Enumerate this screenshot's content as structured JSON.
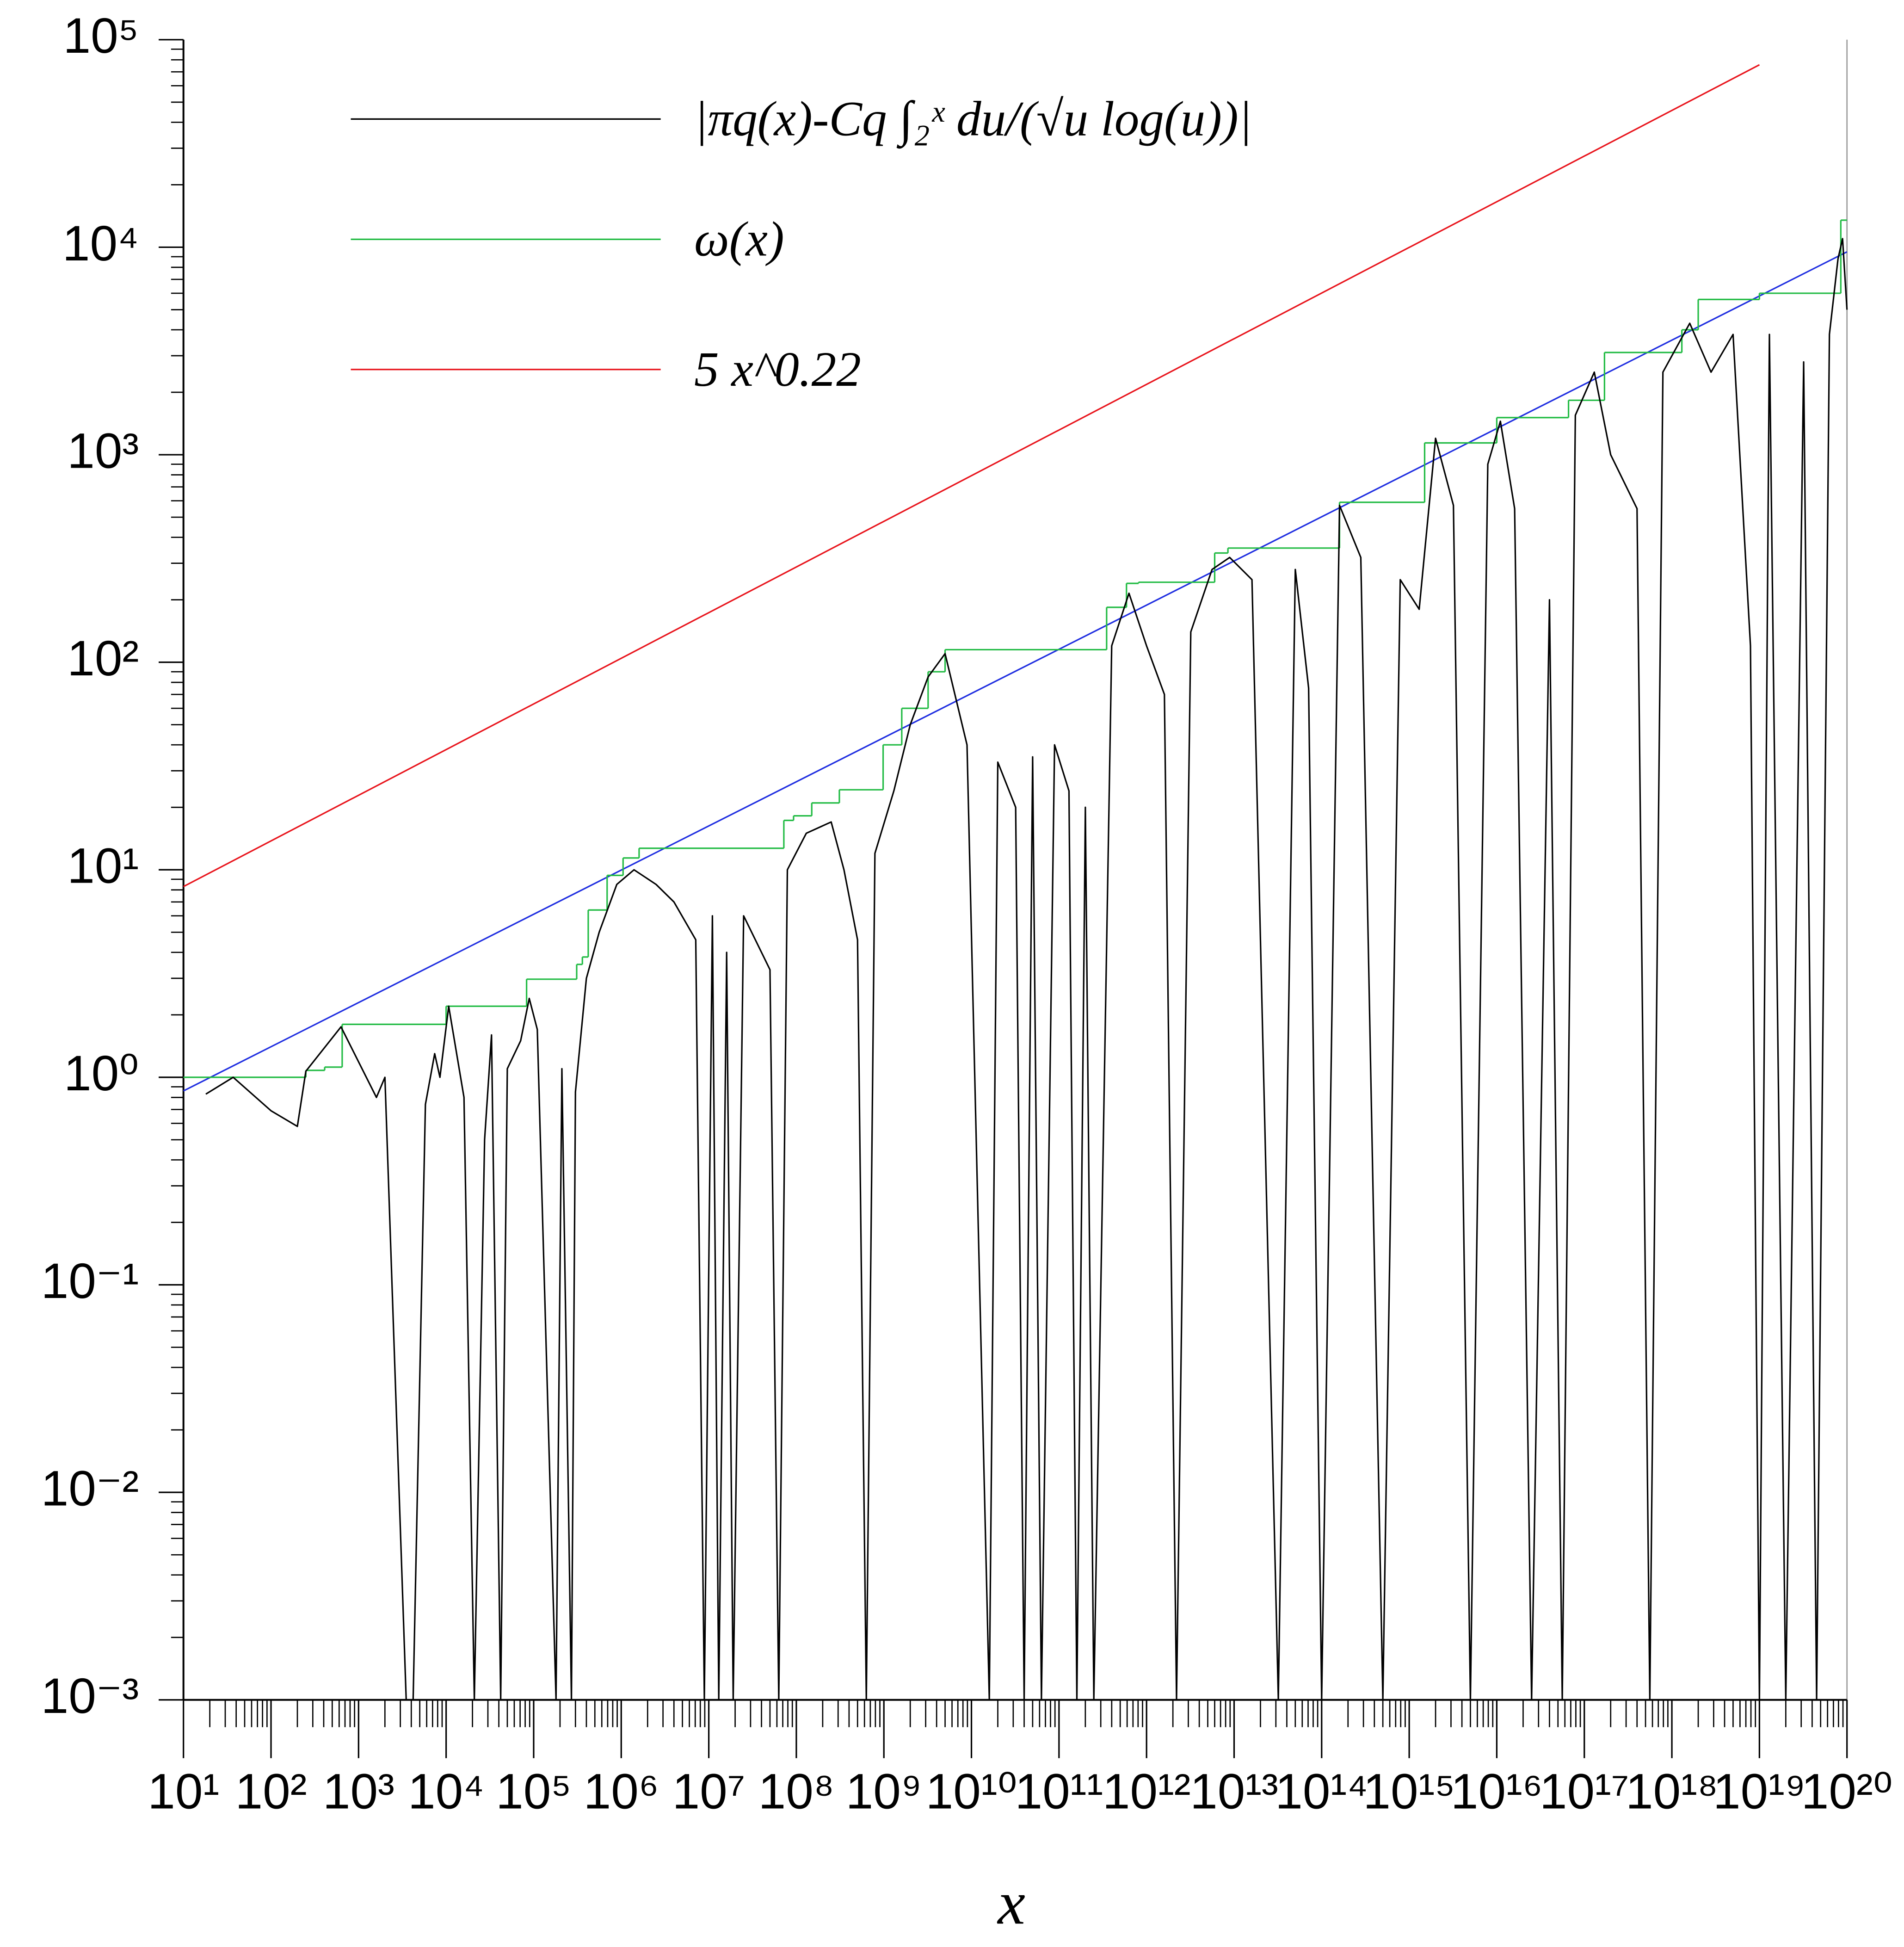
{
  "chart_data": {
    "type": "line",
    "x_label": "x",
    "xscale": "log",
    "yscale": "log",
    "xlim": [
      10,
      1e+20
    ],
    "ylim": [
      0.001,
      100000
    ],
    "xticks": [
      {
        "value": 10.0,
        "label": "10¹"
      },
      {
        "value": 100.0,
        "label": "10²"
      },
      {
        "value": 1000.0,
        "label": "10³"
      },
      {
        "value": 10000.0,
        "label": "10⁴"
      },
      {
        "value": 100000.0,
        "label": "10⁵"
      },
      {
        "value": 1000000.0,
        "label": "10⁶"
      },
      {
        "value": 10000000.0,
        "label": "10⁷"
      },
      {
        "value": 100000000.0,
        "label": "10⁸"
      },
      {
        "value": 1000000000.0,
        "label": "10⁹"
      },
      {
        "value": 10000000000.0,
        "label": "10¹⁰"
      },
      {
        "value": 100000000000.0,
        "label": "10¹¹"
      },
      {
        "value": 1000000000000.0,
        "label": "10¹²"
      },
      {
        "value": 10000000000000.0,
        "label": "10¹³"
      },
      {
        "value": 100000000000000.0,
        "label": "10¹⁴"
      },
      {
        "value": 1000000000000000.0,
        "label": "10¹⁵"
      },
      {
        "value": 1e+16,
        "label": "10¹⁶"
      },
      {
        "value": 1e+17,
        "label": "10¹⁷"
      },
      {
        "value": 1e+18,
        "label": "10¹⁸"
      },
      {
        "value": 1e+19,
        "label": "10¹⁹"
      },
      {
        "value": 1e+20,
        "label": "10²⁰"
      }
    ],
    "yticks": [
      {
        "value": 0.001,
        "label": "10⁻³"
      },
      {
        "value": 0.01,
        "label": "10⁻²"
      },
      {
        "value": 0.1,
        "label": "10⁻¹"
      },
      {
        "value": 1,
        "label": "10⁰"
      },
      {
        "value": 10,
        "label": "10¹"
      },
      {
        "value": 100,
        "label": "10²"
      },
      {
        "value": 1000,
        "label": "10³"
      },
      {
        "value": 10000,
        "label": "10⁴"
      },
      {
        "value": 100000,
        "label": "10⁵"
      }
    ],
    "minor_ticks": true,
    "grid": false,
    "legend": "upper left",
    "series": [
      {
        "name": "|πq(x)-Cq ∫₂ˣ du/(√u log(u))|",
        "color": "#000000",
        "x": [
          18.0,
          37.0,
          100.0,
          200.0,
          250.0,
          630.0,
          1600.0,
          2000.0,
          3500.0,
          4200.0,
          5800.0,
          7400.0,
          8500.0,
          10700.0,
          16000.0,
          21000.0,
          27500.0,
          33000.0,
          42000.0,
          50000.0,
          71000.0,
          89000.0,
          110000.0,
          180000.0,
          210000.0,
          270000.0,
          300000.0,
          400000.0,
          560000.0,
          890000.0,
          1400000.0,
          2500000.0,
          4000000.0,
          7100000.0,
          8900000.0,
          11000000.0,
          13000000.0,
          16000000.0,
          19000000.0,
          25000000.0,
          50000000.0,
          63000000.0,
          79000000.0,
          130000000.0,
          250000000.0,
          350000000.0,
          500000000.0,
          630000000.0,
          790000000.0,
          1300000000.0,
          2000000000.0,
          3200000000.0,
          5000000000.0,
          8900000000.0,
          16000000000.0,
          20000000000.0,
          32000000000.0,
          40000000000.0,
          50000000000.0,
          63000000000.0,
          89000000000.0,
          130000000000.0,
          160000000000.0,
          200000000000.0,
          250000000000.0,
          400000000000.0,
          630000000000.0,
          1000000000000.0,
          1600000000000.0,
          2200000000000.0,
          3200000000000.0,
          5600000000000.0,
          8900000000000.0,
          16000000000000.0,
          32000000000000.0,
          50000000000000.0,
          71000000000000.0,
          100000000000000.0,
          160000000000000.0,
          280000000000000.0,
          500000000000000.0,
          790000000000000.0,
          1300000000000000.0,
          2000000000000000.0,
          3200000000000000.0,
          5000000000000000.0,
          7900000000000000.0,
          1.1e+16,
          1.6e+16,
          2.5e+16,
          4e+16,
          5.6e+16,
          7.9e+16,
          1.3e+17,
          2e+17,
          4e+17,
          5.6e+17,
          7.9e+17,
          1.6e+18,
          2.8e+18,
          5e+18,
          7.9e+18,
          1e+19,
          1.3e+19,
          2e+19,
          3.2e+19,
          4.5e+19,
          6.3e+19,
          7.9e+19,
          8.9e+19,
          1e+20
        ],
        "values": [
          0.83,
          1.0,
          0.69,
          0.58,
          1.07,
          1.75,
          0.8,
          1.0,
          0.001,
          0.001,
          0.74,
          1.3,
          1.0,
          2.2,
          0.8,
          0.001,
          0.5,
          1.6,
          0.001,
          1.1,
          1.5,
          2.4,
          1.7,
          0.001,
          1.1,
          0.001,
          0.85,
          3,
          5,
          8.5,
          10,
          8.5,
          7,
          4.6,
          0.001,
          6,
          0.001,
          4,
          0.001,
          6,
          3.3,
          0.001,
          10,
          15,
          17,
          10,
          4.6,
          0.001,
          12,
          24,
          50,
          85,
          110,
          40,
          0.001,
          33,
          20,
          0.001,
          35,
          0.001,
          40,
          24,
          0.001,
          20,
          0.001,
          120,
          215,
          120,
          70,
          0.001,
          140,
          280,
          320,
          250,
          0.001,
          280,
          75,
          0.001,
          570,
          320,
          0.001,
          250,
          180,
          1200,
          570,
          0.001,
          900,
          1450,
          550,
          0.001,
          200,
          0.001,
          1550,
          2500,
          1000,
          550,
          0.001,
          2500,
          4300,
          2500,
          3800,
          120,
          0.001,
          3800,
          0.001,
          2800,
          0.001,
          3800,
          8800,
          11000,
          5000
        ]
      },
      {
        "name": "ω(x)",
        "color": "#22bb44",
        "step": "post",
        "x": [
          10,
          250,
          410,
          650,
          10000.0,
          83000.0,
          310000.0,
          360000.0,
          420000.0,
          690000.0,
          1050000.0,
          1600000.0,
          72000000.0,
          93000000.0,
          150000000.0,
          310000000.0,
          980000000.0,
          1600000000.0,
          3200000000.0,
          5000000000.0,
          350000000000.0,
          590000000000.0,
          810000000000.0,
          6000000000000.0,
          8500000000000.0,
          160000000000000.0,
          1500000000000000.0,
          1e+16,
          6.6e+16,
          1.7e+17,
          1.3e+18,
          2e+18,
          1e+19,
          8.5e+19,
          1e+20
        ],
        "values": [
          1.0,
          1.08,
          1.12,
          1.8,
          2.2,
          2.97,
          3.5,
          3.8,
          6.4,
          9.4,
          11.4,
          12.7,
          17.3,
          18.2,
          21,
          24.3,
          40,
          60,
          90,
          115,
          184,
          240,
          243,
          336,
          355,
          590,
          1140,
          1510,
          1830,
          3110,
          4000,
          5600,
          6000,
          13500,
          13500
        ]
      },
      {
        "name": "5 x^0.22",
        "color": "#e8141c",
        "x": [
          10,
          1e+19
        ],
        "values": [
          8.3,
          75700
        ]
      },
      {
        "color": "#1f2ee0",
        "x": [
          10,
          1e+20
        ],
        "values": [
          0.86,
          9500
        ]
      }
    ]
  }
}
